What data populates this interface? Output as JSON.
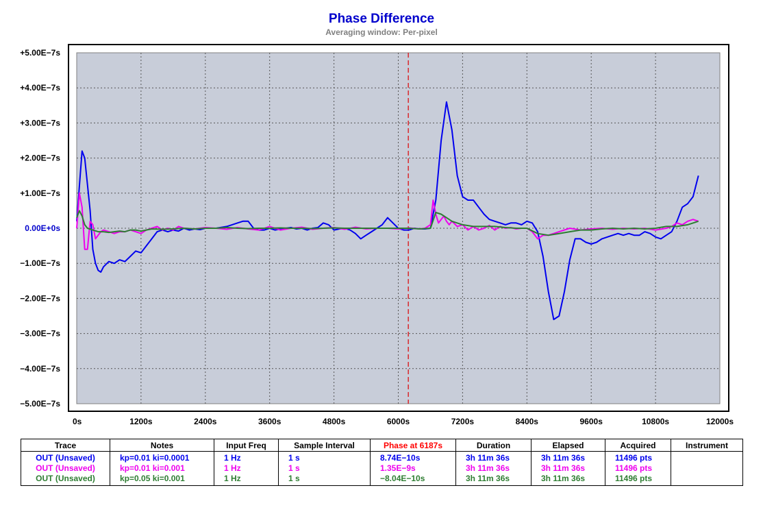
{
  "chart_data": {
    "type": "line",
    "title": "Phase Difference",
    "subtitle": "Averaging window: Per-pixel",
    "xlim": [
      0,
      12000
    ],
    "ylim": [
      -5e-07,
      5e-07
    ],
    "x_ticks": [
      0,
      1200,
      2400,
      3600,
      4800,
      6000,
      7200,
      8400,
      9600,
      10800,
      12000
    ],
    "x_tick_labels": [
      "0s",
      "1200s",
      "2400s",
      "3600s",
      "4800s",
      "6000s",
      "7200s",
      "8400s",
      "9600s",
      "10800s",
      "12000s"
    ],
    "y_ticks": [
      5e-07,
      4e-07,
      3e-07,
      2e-07,
      1e-07,
      0,
      -1e-07,
      -2e-07,
      -3e-07,
      -4e-07,
      -5e-07
    ],
    "y_tick_labels": [
      "+5.00E−7s",
      "+4.00E−7s",
      "+3.00E−7s",
      "+2.00E−7s",
      "+1.00E−7s",
      "0.00E+0s",
      "−1.00E−7s",
      "−2.00E−7s",
      "−3.00E−7s",
      "−4.00E−7s",
      "−5.00E−7s"
    ],
    "grid": true,
    "cursor_x": 6187,
    "plot_bg": "#c8cdd9",
    "series": [
      {
        "color": "#0000ee",
        "x": [
          0,
          100,
          150,
          250,
          300,
          350,
          400,
          450,
          500,
          600,
          700,
          800,
          900,
          1000,
          1100,
          1200,
          1300,
          1400,
          1500,
          1600,
          1700,
          1800,
          1900,
          2000,
          2100,
          2200,
          2300,
          2400,
          2600,
          2800,
          2900,
          3000,
          3100,
          3200,
          3300,
          3400,
          3500,
          3600,
          3700,
          3800,
          3900,
          4000,
          4100,
          4200,
          4300,
          4400,
          4500,
          4600,
          4700,
          4800,
          4900,
          5000,
          5100,
          5200,
          5300,
          5400,
          5500,
          5600,
          5700,
          5800,
          5900,
          6000,
          6100,
          6200,
          6300,
          6400,
          6500,
          6600,
          6700,
          6800,
          6900,
          7000,
          7100,
          7200,
          7300,
          7400,
          7500,
          7600,
          7700,
          7800,
          7900,
          8000,
          8100,
          8200,
          8300,
          8400,
          8500,
          8600,
          8700,
          8800,
          8900,
          9000,
          9100,
          9200,
          9300,
          9400,
          9500,
          9600,
          9700,
          9800,
          9900,
          10000,
          10100,
          10200,
          10300,
          10400,
          10500,
          10600,
          10700,
          10800,
          10900,
          11000,
          11100,
          11200,
          11300,
          11400,
          11500,
          11600
        ],
        "y": [
          2e-08,
          2.2e-07,
          2e-07,
          5e-08,
          -6e-08,
          -1e-07,
          -1.2e-07,
          -1.25e-07,
          -1.1e-07,
          -9.5e-08,
          -1e-07,
          -9e-08,
          -9.5e-08,
          -8e-08,
          -6.5e-08,
          -7e-08,
          -5e-08,
          -3e-08,
          -1e-08,
          -5e-09,
          -1e-08,
          -5e-09,
          -8e-09,
          0.0,
          -5e-09,
          -2e-09,
          -4e-09,
          0.0,
          0.0,
          5e-09,
          1e-08,
          1.5e-08,
          2e-08,
          2e-08,
          0.0,
          -5e-09,
          -5e-09,
          0.0,
          -5e-09,
          -2e-09,
          0.0,
          2e-09,
          -2e-09,
          0.0,
          -5e-09,
          0.0,
          2e-09,
          1.5e-08,
          1e-08,
          -5e-09,
          -2e-09,
          0.0,
          -5e-09,
          -1.5e-08,
          -3e-08,
          -2e-08,
          -1e-08,
          0.0,
          1e-08,
          3e-08,
          1.5e-08,
          0.0,
          -5e-09,
          -5e-09,
          0.0,
          -2e-09,
          -2e-09,
          0.0,
          8e-08,
          2.5e-07,
          3.6e-07,
          2.8e-07,
          1.5e-07,
          9e-08,
          8e-08,
          8e-08,
          6e-08,
          4e-08,
          2.5e-08,
          2e-08,
          1.5e-08,
          1e-08,
          1.5e-08,
          1.5e-08,
          1e-08,
          2e-08,
          1.5e-08,
          -1e-08,
          -8e-08,
          -1.8e-07,
          -2.6e-07,
          -2.5e-07,
          -1.8e-07,
          -9e-08,
          -3e-08,
          -3e-08,
          -4e-08,
          -4.5e-08,
          -4e-08,
          -3e-08,
          -2.5e-08,
          -2e-08,
          -1.5e-08,
          -2e-08,
          -1.5e-08,
          -2e-08,
          -2e-08,
          -1e-08,
          -1.5e-08,
          -2.5e-08,
          -3e-08,
          -2e-08,
          -1e-08,
          2e-08,
          6e-08,
          7e-08,
          9e-08,
          1.5e-07
        ]
      },
      {
        "color": "#ee00ee",
        "x": [
          0,
          50,
          100,
          150,
          200,
          250,
          300,
          350,
          400,
          450,
          500,
          600,
          700,
          800,
          900,
          1000,
          1100,
          1200,
          1300,
          1400,
          1500,
          1600,
          1700,
          1800,
          1900,
          2000,
          2200,
          2400,
          2600,
          2800,
          3000,
          3200,
          3400,
          3600,
          3800,
          4000,
          4200,
          4400,
          4600,
          4800,
          5000,
          5200,
          5400,
          5600,
          5800,
          6000,
          6200,
          6400,
          6500,
          6600,
          6650,
          6700,
          6750,
          6800,
          6850,
          6900,
          6950,
          7000,
          7100,
          7200,
          7300,
          7400,
          7500,
          7600,
          7700,
          7800,
          7900,
          8000,
          8100,
          8200,
          8300,
          8400,
          8500,
          8600,
          8700,
          8800,
          8900,
          9000,
          9200,
          9400,
          9600,
          9800,
          10000,
          10200,
          10400,
          10600,
          10800,
          11000,
          11100,
          11200,
          11300,
          11400,
          11500,
          11600
        ],
        "y": [
          0.0,
          1e-07,
          6e-08,
          -6e-08,
          -6e-08,
          2e-08,
          1e-08,
          -3e-08,
          -2e-08,
          -1e-08,
          -5e-09,
          -1e-08,
          -1.5e-08,
          -1e-08,
          -1e-08,
          -5e-09,
          -1e-08,
          -1.5e-08,
          -5e-09,
          0.0,
          5e-09,
          -5e-09,
          0.0,
          -5e-09,
          5e-09,
          0.0,
          -2e-09,
          2e-09,
          0.0,
          -3e-09,
          2e-09,
          -2e-09,
          -5e-09,
          5e-09,
          -5e-09,
          0.0,
          3e-09,
          -3e-09,
          0.0,
          2e-09,
          -3e-09,
          3e-09,
          -2e-09,
          0.0,
          0.0,
          -2e-09,
          1e-09,
          -2e-09,
          0.0,
          1e-08,
          8e-08,
          4e-08,
          1.5e-08,
          2.5e-08,
          3.5e-08,
          2e-08,
          1e-08,
          2e-08,
          5e-09,
          1e-08,
          -5e-09,
          5e-09,
          -5e-09,
          0.0,
          8e-09,
          -5e-09,
          5e-09,
          0.0,
          2e-09,
          -2e-09,
          0.0,
          0.0,
          -1e-08,
          -3e-08,
          -2e-08,
          -2e-08,
          -1.5e-08,
          -1e-08,
          0.0,
          -5e-09,
          -2e-09,
          0.0,
          -3e-09,
          0.0,
          -2e-09,
          0.0,
          -5e-09,
          0.0,
          5e-09,
          1.5e-08,
          1e-08,
          2e-08,
          2.5e-08,
          2e-08
        ]
      },
      {
        "color": "#2e7d32",
        "x": [
          0,
          50,
          100,
          150,
          200,
          300,
          400,
          500,
          600,
          700,
          800,
          900,
          1000,
          1100,
          1200,
          1300,
          1400,
          1600,
          1800,
          2000,
          2200,
          2400,
          2600,
          2800,
          3000,
          3200,
          3400,
          3600,
          3800,
          4000,
          4200,
          4400,
          4600,
          4800,
          5000,
          5200,
          5400,
          5600,
          5800,
          6000,
          6200,
          6400,
          6600,
          6700,
          6800,
          6900,
          7000,
          7200,
          7400,
          7600,
          7800,
          8000,
          8200,
          8400,
          8600,
          8800,
          9000,
          9200,
          9400,
          9600,
          9800,
          10000,
          10200,
          10400,
          10600,
          10800,
          11000,
          11200,
          11400,
          11600
        ],
        "y": [
          3e-08,
          5e-08,
          3.5e-08,
          1e-08,
          0.0,
          -5e-09,
          -1e-08,
          -1e-08,
          -1.2e-08,
          -1e-08,
          -8e-09,
          -1e-08,
          -5e-09,
          -5e-09,
          -8e-09,
          -5e-09,
          -2e-09,
          -3e-09,
          -2e-09,
          0.0,
          -2e-09,
          0.0,
          0.0,
          2e-09,
          0.0,
          -1e-09,
          0.0,
          0.0,
          1e-09,
          0.0,
          0.0,
          -1e-09,
          0.0,
          1e-09,
          0.0,
          0.0,
          0.0,
          0.0,
          0.0,
          0.0,
          0.0,
          -2e-09,
          0.0,
          4.5e-08,
          4e-08,
          3e-08,
          2e-08,
          1e-08,
          5e-09,
          5e-09,
          5e-09,
          2e-09,
          0.0,
          0.0,
          -1.5e-08,
          -2e-08,
          -1.5e-08,
          -1e-08,
          -5e-09,
          -5e-09,
          -2e-09,
          0.0,
          -2e-09,
          0.0,
          -2e-09,
          0.0,
          5e-09,
          5e-09,
          1e-08,
          2e-08
        ]
      }
    ]
  },
  "legend": {
    "headers": [
      "Trace",
      "Notes",
      "Input Freq",
      "Sample Interval",
      "Phase at 6187s",
      "Duration",
      "Elapsed",
      "Acquired",
      "Instrument"
    ],
    "phase_header_color": "#ff0000",
    "rows": [
      {
        "color": "#0000ee",
        "cells": [
          "OUT (Unsaved)",
          "kp=0.01 ki=0.0001",
          "1 Hz",
          "1 s",
          "8.74E−10s",
          "3h 11m 36s",
          "3h 11m 36s",
          "11496 pts",
          ""
        ]
      },
      {
        "color": "#ee00ee",
        "cells": [
          "OUT (Unsaved)",
          "kp=0.01 ki=0.001",
          "1 Hz",
          "1 s",
          "1.35E−9s",
          "3h 11m 36s",
          "3h 11m 36s",
          "11496 pts",
          ""
        ]
      },
      {
        "color": "#2e7d32",
        "cells": [
          "OUT (Unsaved)",
          "kp=0.05 ki=0.001",
          "1 Hz",
          "1 s",
          "−8.04E−10s",
          "3h 11m 36s",
          "3h 11m 36s",
          "11496 pts",
          ""
        ]
      }
    ]
  }
}
